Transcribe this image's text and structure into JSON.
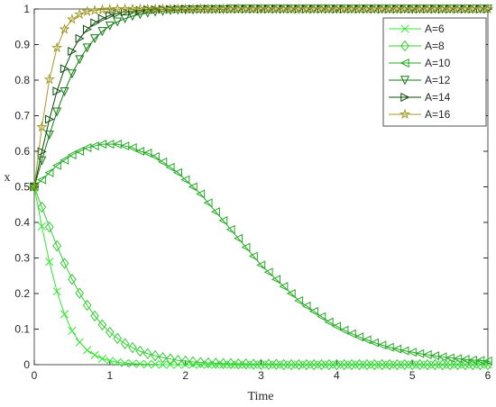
{
  "chart_data": {
    "type": "line",
    "xlabel": "Time",
    "ylabel": "x",
    "x": [
      0,
      0.1,
      0.2,
      0.3,
      0.4,
      0.5,
      0.6,
      0.7,
      0.8,
      0.9,
      1,
      1.1,
      1.2,
      1.3,
      1.4,
      1.5,
      1.6,
      1.7,
      1.8,
      1.9,
      2,
      2.1,
      2.2,
      2.3,
      2.4,
      2.5,
      2.6,
      2.7,
      2.8,
      2.9,
      3,
      3.1,
      3.2,
      3.3,
      3.4,
      3.5,
      3.6,
      3.7,
      3.8,
      3.9,
      4,
      4.1,
      4.2,
      4.3,
      4.4,
      4.5,
      4.6,
      4.7,
      4.8,
      4.9,
      5,
      5.1,
      5.2,
      5.3,
      5.4,
      5.5,
      5.6,
      5.7,
      5.8,
      5.9,
      6
    ],
    "series": [
      {
        "name": "A=6",
        "color": "#2ee82e",
        "marker": "x",
        "values": [
          0.5,
          0.389,
          0.289,
          0.206,
          0.142,
          0.095,
          0.063,
          0.041,
          0.027,
          0.017,
          0.011,
          0.007,
          0.004,
          0.003,
          0.002,
          0.001,
          0.001,
          0,
          0,
          0,
          0,
          0,
          0,
          0,
          0,
          0,
          0,
          0,
          0,
          0,
          0,
          0,
          0,
          0,
          0,
          0,
          0,
          0,
          0,
          0,
          0,
          0,
          0,
          0,
          0,
          0,
          0,
          0,
          0,
          0,
          0,
          0,
          0,
          0,
          0,
          0,
          0,
          0,
          0,
          0,
          0
        ]
      },
      {
        "name": "A=8",
        "color": "#33cc33",
        "marker": "diamond",
        "values": [
          0.5,
          0.443,
          0.387,
          0.334,
          0.285,
          0.24,
          0.201,
          0.167,
          0.137,
          0.112,
          0.091,
          0.074,
          0.059,
          0.048,
          0.038,
          0.031,
          0.025,
          0.02,
          0.016,
          0.012,
          0.01,
          0.008,
          0.006,
          0.005,
          0.004,
          0.003,
          0.003,
          0.002,
          0.002,
          0.001,
          0.001,
          0.001,
          0.001,
          0,
          0,
          0,
          0,
          0,
          0,
          0,
          0,
          0,
          0,
          0,
          0,
          0,
          0,
          0,
          0,
          0,
          0,
          0,
          0,
          0,
          0,
          0,
          0,
          0,
          0,
          0,
          0
        ]
      },
      {
        "name": "A=10",
        "color": "#22aa22",
        "marker": "triangle-left",
        "values": [
          0.5,
          0.52,
          0.54,
          0.56,
          0.575,
          0.59,
          0.6,
          0.61,
          0.615,
          0.62,
          0.62,
          0.62,
          0.615,
          0.61,
          0.6,
          0.595,
          0.585,
          0.57,
          0.555,
          0.54,
          0.52,
          0.5,
          0.48,
          0.455,
          0.43,
          0.405,
          0.38,
          0.355,
          0.33,
          0.305,
          0.28,
          0.26,
          0.24,
          0.22,
          0.2,
          0.18,
          0.165,
          0.15,
          0.135,
          0.12,
          0.108,
          0.097,
          0.087,
          0.078,
          0.07,
          0.062,
          0.055,
          0.049,
          0.044,
          0.039,
          0.035,
          0.031,
          0.028,
          0.025,
          0.022,
          0.019,
          0.017,
          0.015,
          0.013,
          0.012,
          0.01
        ]
      },
      {
        "name": "A=12",
        "color": "#127a12",
        "marker": "triangle-down",
        "values": [
          0.5,
          0.574,
          0.646,
          0.711,
          0.768,
          0.818,
          0.858,
          0.891,
          0.917,
          0.937,
          0.953,
          0.964,
          0.973,
          0.98,
          0.985,
          0.989,
          0.992,
          0.994,
          0.996,
          0.997,
          0.998,
          0.998,
          0.999,
          0.999,
          0.999,
          0.999,
          1,
          1,
          1,
          1,
          1,
          1,
          1,
          1,
          1,
          1,
          1,
          1,
          1,
          1,
          1,
          1,
          1,
          1,
          1,
          1,
          1,
          1,
          1,
          1,
          1,
          1,
          1,
          1,
          1,
          1,
          1,
          1,
          1,
          1,
          1
        ]
      },
      {
        "name": "A=14",
        "color": "#0a4a0a",
        "marker": "triangle-right",
        "values": [
          0.5,
          0.599,
          0.69,
          0.769,
          0.832,
          0.881,
          0.917,
          0.943,
          0.961,
          0.973,
          0.982,
          0.988,
          0.992,
          0.994,
          0.996,
          0.998,
          0.998,
          0.999,
          0.999,
          1,
          1,
          1,
          1,
          1,
          1,
          1,
          1,
          1,
          1,
          1,
          1,
          1,
          1,
          1,
          1,
          1,
          1,
          1,
          1,
          1,
          1,
          1,
          1,
          1,
          1,
          1,
          1,
          1,
          1,
          1,
          1,
          1,
          1,
          1,
          1,
          1,
          1,
          1,
          1,
          1,
          1
        ]
      },
      {
        "name": "A=16",
        "color": "#a09a28",
        "marker": "star",
        "values": [
          0.5,
          0.668,
          0.802,
          0.891,
          0.943,
          0.971,
          0.985,
          0.993,
          0.996,
          0.998,
          0.999,
          1,
          1,
          1,
          1,
          1,
          1,
          1,
          1,
          1,
          1,
          1,
          1,
          1,
          1,
          1,
          1,
          1,
          1,
          1,
          1,
          1,
          1,
          1,
          1,
          1,
          1,
          1,
          1,
          1,
          1,
          1,
          1,
          1,
          1,
          1,
          1,
          1,
          1,
          1,
          1,
          1,
          1,
          1,
          1,
          1,
          1,
          1,
          1,
          1,
          1
        ]
      }
    ],
    "xlim": [
      0,
      6
    ],
    "ylim": [
      0,
      1
    ],
    "xticks": [
      0,
      1,
      2,
      3,
      4,
      5,
      6
    ],
    "yticks": [
      0,
      0.1,
      0.2,
      0.3,
      0.4,
      0.5,
      0.6,
      0.7,
      0.8,
      0.9,
      1
    ],
    "grid": false,
    "legend": "northeast"
  }
}
